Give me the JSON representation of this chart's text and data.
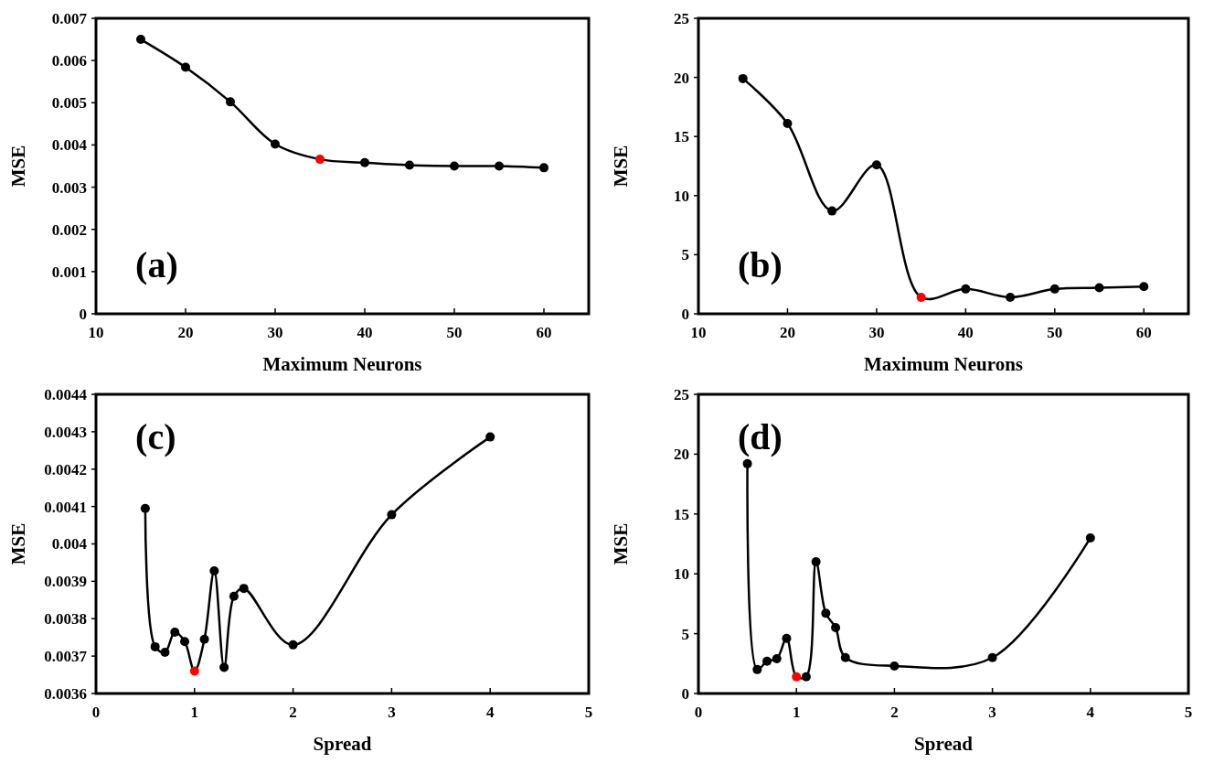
{
  "chart_data": [
    {
      "type": "line",
      "xlabel": "Maximum Neurons",
      "ylabel": "MSE",
      "annotations": [
        "(a)"
      ],
      "xlim": [
        10,
        65
      ],
      "xticks": [
        10,
        20,
        30,
        40,
        50,
        60
      ],
      "ylim": [
        0,
        0.007
      ],
      "yticks": [
        0,
        0.001,
        0.002,
        0.003,
        0.004,
        0.005,
        0.006,
        0.007
      ],
      "marker": "circle",
      "grid": false,
      "series": [
        {
          "color": "#000000",
          "x": [
            15,
            20,
            25,
            30,
            35,
            40,
            45,
            50,
            55,
            60
          ],
          "values": [
            0.0065,
            0.00584,
            0.00502,
            0.00402,
            0.00366,
            0.00358,
            0.00352,
            0.0035,
            0.0035,
            0.00346
          ],
          "colors": [
            "#000000",
            "#000000",
            "#000000",
            "#000000",
            "#ff0000",
            "#000000",
            "#000000",
            "#000000",
            "#000000",
            "#000000"
          ]
        }
      ]
    },
    {
      "type": "line",
      "xlabel": "Maximum Neurons",
      "ylabel": "MSE",
      "annotations": [
        "(b)"
      ],
      "xlim": [
        10,
        65
      ],
      "xticks": [
        10,
        20,
        30,
        40,
        50,
        60
      ],
      "ylim": [
        0,
        25
      ],
      "yticks": [
        0,
        5,
        10,
        15,
        20,
        25
      ],
      "marker": "circle",
      "grid": false,
      "series": [
        {
          "color": "#000000",
          "x": [
            15,
            20,
            25,
            30,
            35,
            40,
            45,
            50,
            55,
            60
          ],
          "values": [
            19.9,
            16.1,
            8.7,
            12.6,
            1.4,
            2.1,
            1.4,
            2.1,
            2.2,
            2.3
          ],
          "colors": [
            "#000000",
            "#000000",
            "#000000",
            "#000000",
            "#ff0000",
            "#000000",
            "#000000",
            "#000000",
            "#000000",
            "#000000"
          ]
        }
      ]
    },
    {
      "type": "line",
      "xlabel": "Spread",
      "ylabel": "MSE",
      "annotations": [
        "(c)"
      ],
      "xlim": [
        0,
        5
      ],
      "xticks": [
        0,
        1,
        2,
        3,
        4,
        5
      ],
      "ylim": [
        0.0036,
        0.0044
      ],
      "yticks": [
        0.0036,
        0.0037,
        0.0038,
        0.0039,
        0.004,
        0.0041,
        0.0042,
        0.0043,
        0.0044
      ],
      "marker": "circle",
      "grid": false,
      "series": [
        {
          "color": "#000000",
          "x": [
            0.5,
            0.6,
            0.7,
            0.8,
            0.9,
            1.0,
            1.1,
            1.2,
            1.3,
            1.4,
            1.5,
            2,
            3,
            4
          ],
          "values": [
            0.004095,
            0.003725,
            0.00371,
            0.003764,
            0.003739,
            0.00366,
            0.003745,
            0.003928,
            0.00367,
            0.00386,
            0.003881,
            0.00373,
            0.004078,
            0.004286
          ],
          "colors": [
            "#000000",
            "#000000",
            "#000000",
            "#000000",
            "#000000",
            "#ff0000",
            "#000000",
            "#000000",
            "#000000",
            "#000000",
            "#000000",
            "#000000",
            "#000000",
            "#000000"
          ]
        }
      ]
    },
    {
      "type": "line",
      "xlabel": "Spread",
      "ylabel": "MSE",
      "annotations": [
        "(d)"
      ],
      "xlim": [
        0,
        5
      ],
      "xticks": [
        0,
        1,
        2,
        3,
        4,
        5
      ],
      "ylim": [
        0,
        25
      ],
      "yticks": [
        0,
        5,
        10,
        15,
        20,
        25
      ],
      "marker": "circle",
      "grid": false,
      "series": [
        {
          "color": "#000000",
          "x": [
            0.5,
            0.6,
            0.7,
            0.8,
            0.9,
            1.0,
            1.1,
            1.2,
            1.3,
            1.4,
            1.5,
            2,
            3,
            4
          ],
          "values": [
            19.2,
            2.0,
            2.7,
            2.9,
            4.6,
            1.4,
            1.4,
            11.0,
            6.7,
            5.5,
            3.0,
            2.3,
            3.0,
            13.0
          ],
          "colors": [
            "#000000",
            "#000000",
            "#000000",
            "#000000",
            "#000000",
            "#ff0000",
            "#000000",
            "#000000",
            "#000000",
            "#000000",
            "#000000",
            "#000000",
            "#000000",
            "#000000"
          ]
        }
      ]
    }
  ]
}
